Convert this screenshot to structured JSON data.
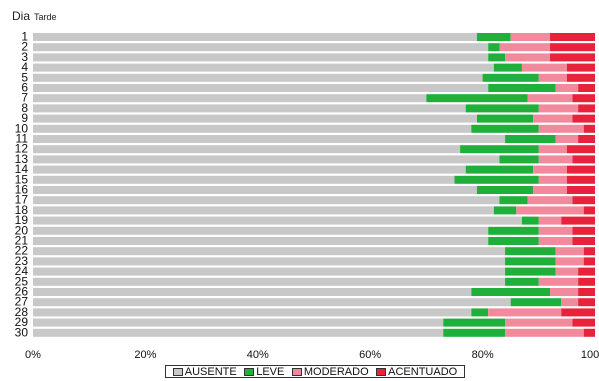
{
  "chart_data": {
    "type": "bar",
    "orientation": "horizontal",
    "stacked": "percent",
    "y_axis_title": "Dia",
    "y_axis_subtitle": "Tarde",
    "categories": [
      "1",
      "2",
      "3",
      "4",
      "5",
      "6",
      "7",
      "8",
      "9",
      "10",
      "11",
      "12",
      "13",
      "14",
      "15",
      "16",
      "17",
      "18",
      "19",
      "20",
      "21",
      "22",
      "23",
      "24",
      "25",
      "26",
      "27",
      "28",
      "29",
      "30"
    ],
    "x_ticks": [
      "0%",
      "20%",
      "40%",
      "60%",
      "80%",
      "100%"
    ],
    "xlim": [
      0,
      100
    ],
    "grid": false,
    "legend_position": "bottom",
    "series": [
      {
        "name": "AUSENTE",
        "color": "#c8c8c8",
        "values": [
          79,
          81,
          81,
          82,
          80,
          81,
          70,
          77,
          79,
          78,
          84,
          76,
          83,
          77,
          75,
          79,
          83,
          82,
          87,
          81,
          81,
          84,
          84,
          84,
          84,
          78,
          85,
          78,
          73,
          73
        ]
      },
      {
        "name": "LEVE",
        "color": "#1faf3a",
        "values": [
          6,
          2,
          3,
          5,
          10,
          12,
          18,
          13,
          10,
          12,
          9,
          14,
          7,
          12,
          15,
          10,
          5,
          4,
          3,
          9,
          9,
          9,
          9,
          9,
          6,
          14,
          9,
          3,
          11,
          11
        ]
      },
      {
        "name": "MODERADO",
        "color": "#f08a9c",
        "values": [
          7,
          9,
          8,
          8,
          5,
          4,
          8,
          7,
          7,
          8,
          4,
          5,
          6,
          6,
          5,
          6,
          8,
          12,
          4,
          6,
          6,
          5,
          5,
          4,
          7,
          5,
          3,
          13,
          12,
          14
        ]
      },
      {
        "name": "ACENTUADO",
        "color": "#e8223a",
        "values": [
          8,
          8,
          8,
          5,
          5,
          3,
          4,
          3,
          4,
          2,
          3,
          5,
          4,
          5,
          5,
          5,
          4,
          2,
          6,
          4,
          4,
          2,
          2,
          3,
          3,
          3,
          3,
          6,
          4,
          2
        ]
      }
    ]
  }
}
